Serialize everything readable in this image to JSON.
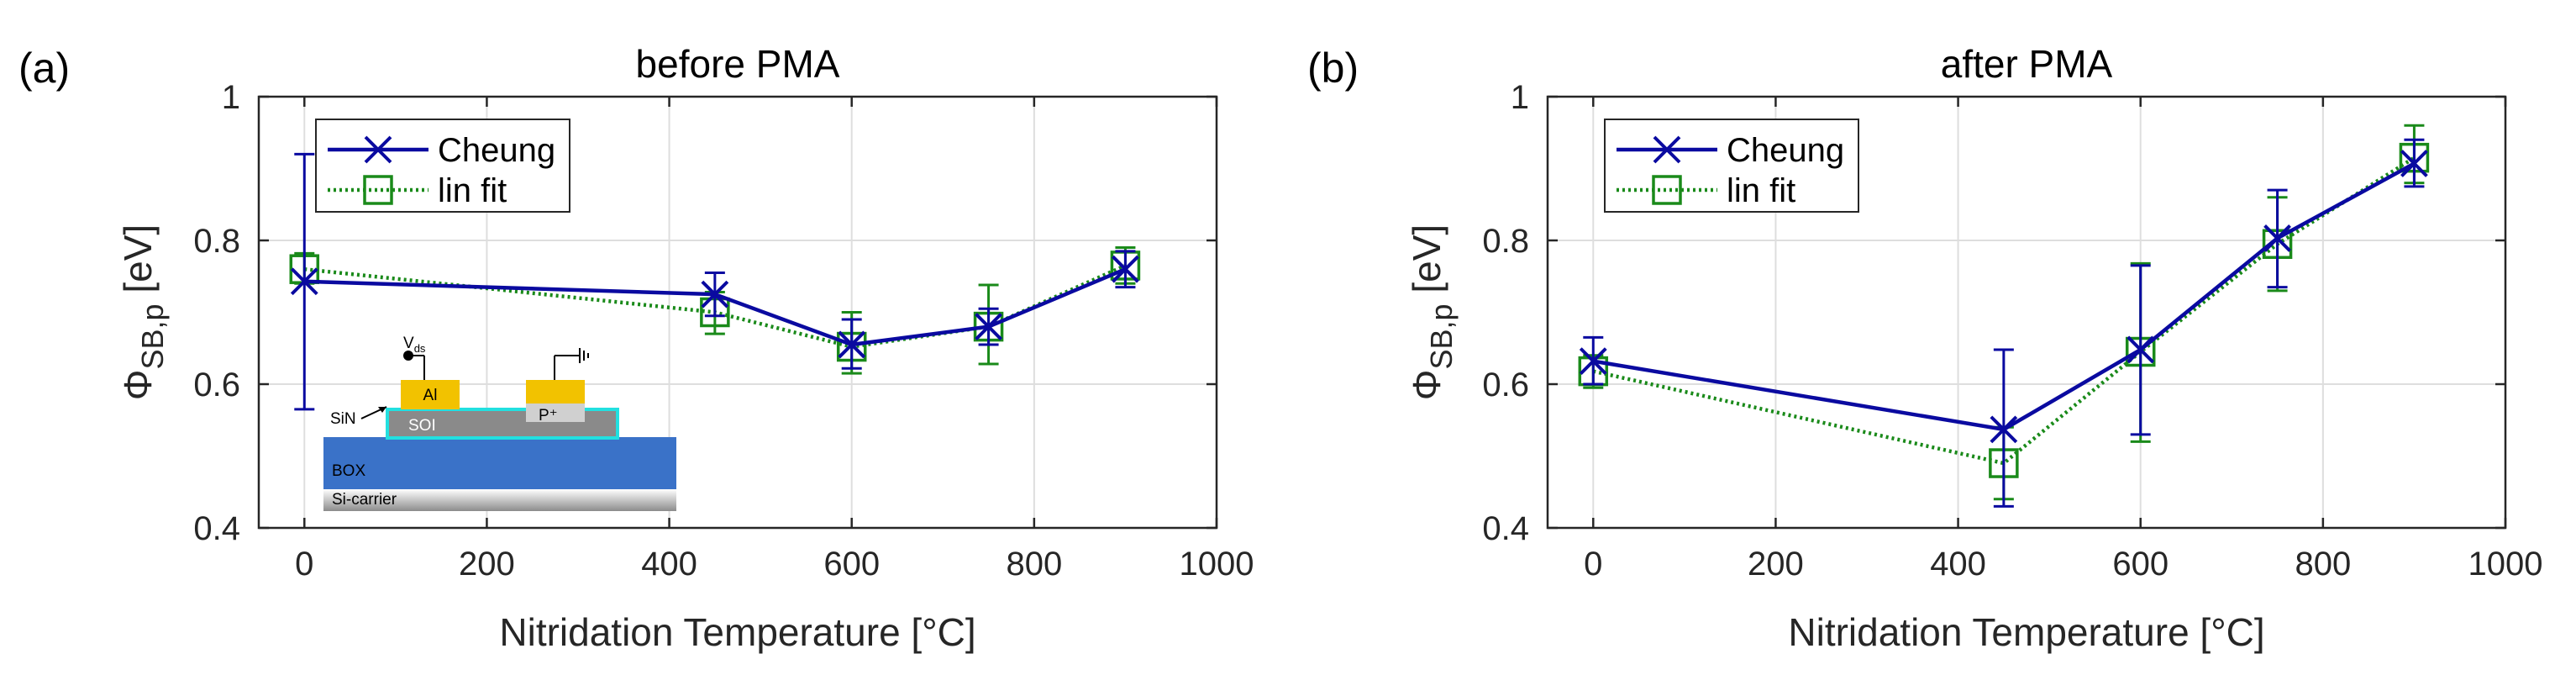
{
  "chart_data": [
    {
      "type": "line",
      "panel_label": "(a)",
      "title": "before PMA",
      "xlabel": "Nitridation Temperature [°C]",
      "ylabel_main": "Φ",
      "ylabel_sub": "SB,p",
      "ylabel_unit": " [eV]",
      "xlim": [
        -50,
        1000
      ],
      "ylim": [
        0.4,
        1.0
      ],
      "xticks": [
        0,
        200,
        400,
        600,
        800,
        1000
      ],
      "yticks": [
        0.4,
        0.6,
        0.8,
        1
      ],
      "xtick_labels": [
        "0",
        "200",
        "400",
        "600",
        "800",
        "1000"
      ],
      "ytick_labels": [
        "0.4",
        "0.6",
        "0.8",
        "1"
      ],
      "grid": true,
      "legend_position": "top-left",
      "series": [
        {
          "name": "Cheung",
          "color": "#0a0aa0",
          "marker": "x",
          "linestyle": "solid",
          "x": [
            0,
            450,
            600,
            750,
            900
          ],
          "y": [
            0.743,
            0.725,
            0.655,
            0.68,
            0.76
          ],
          "err_low": [
            0.565,
            0.695,
            0.622,
            0.655,
            0.735
          ],
          "err_high": [
            0.92,
            0.755,
            0.69,
            0.705,
            0.785
          ]
        },
        {
          "name": "lin fit",
          "color": "#1a8a1a",
          "marker": "square",
          "linestyle": "dotted",
          "x": [
            0,
            450,
            600,
            750,
            900
          ],
          "y": [
            0.76,
            0.7,
            0.652,
            0.68,
            0.765
          ],
          "err_low": [
            0.74,
            0.67,
            0.615,
            0.628,
            0.74
          ],
          "err_high": [
            0.782,
            0.728,
            0.7,
            0.738,
            0.79
          ]
        }
      ],
      "inset": {
        "vds_main": "V",
        "vds_sub": "ds",
        "al_label": "Al",
        "p_label": "P⁺",
        "sin_label": "SiN",
        "soi_label": "SOI",
        "box_label": "BOX",
        "carrier_label": "Si-carrier",
        "colors": {
          "box": "#3a72c8",
          "soi": "#8a8a8a",
          "sin": "#22e0e0",
          "contact": "#f2c200",
          "implant": "#d0d0d0"
        }
      }
    },
    {
      "type": "line",
      "panel_label": "(b)",
      "title": "after PMA",
      "xlabel": "Nitridation Temperature [°C]",
      "ylabel_main": "Φ",
      "ylabel_sub": "SB,p",
      "ylabel_unit": " [eV]",
      "xlim": [
        -50,
        1000
      ],
      "ylim": [
        0.4,
        1.0
      ],
      "xticks": [
        0,
        200,
        400,
        600,
        800,
        1000
      ],
      "yticks": [
        0.4,
        0.6,
        0.8,
        1
      ],
      "xtick_labels": [
        "0",
        "200",
        "400",
        "600",
        "800",
        "1000"
      ],
      "ytick_labels": [
        "0.4",
        "0.6",
        "0.8",
        "1"
      ],
      "grid": true,
      "legend_position": "top-left",
      "series": [
        {
          "name": "Cheung",
          "color": "#0a0aa0",
          "marker": "x",
          "linestyle": "solid",
          "x": [
            0,
            450,
            600,
            750,
            900
          ],
          "y": [
            0.632,
            0.537,
            0.648,
            0.803,
            0.907
          ],
          "err_low": [
            0.6,
            0.43,
            0.53,
            0.735,
            0.875
          ],
          "err_high": [
            0.665,
            0.648,
            0.765,
            0.87,
            0.94
          ]
        },
        {
          "name": "lin fit",
          "color": "#1a8a1a",
          "marker": "square",
          "linestyle": "dotted",
          "x": [
            0,
            450,
            600,
            750,
            900
          ],
          "y": [
            0.618,
            0.49,
            0.645,
            0.795,
            0.915
          ],
          "err_low": [
            0.595,
            0.44,
            0.52,
            0.73,
            0.88
          ],
          "err_high": [
            0.64,
            0.54,
            0.768,
            0.86,
            0.96
          ]
        }
      ]
    }
  ]
}
